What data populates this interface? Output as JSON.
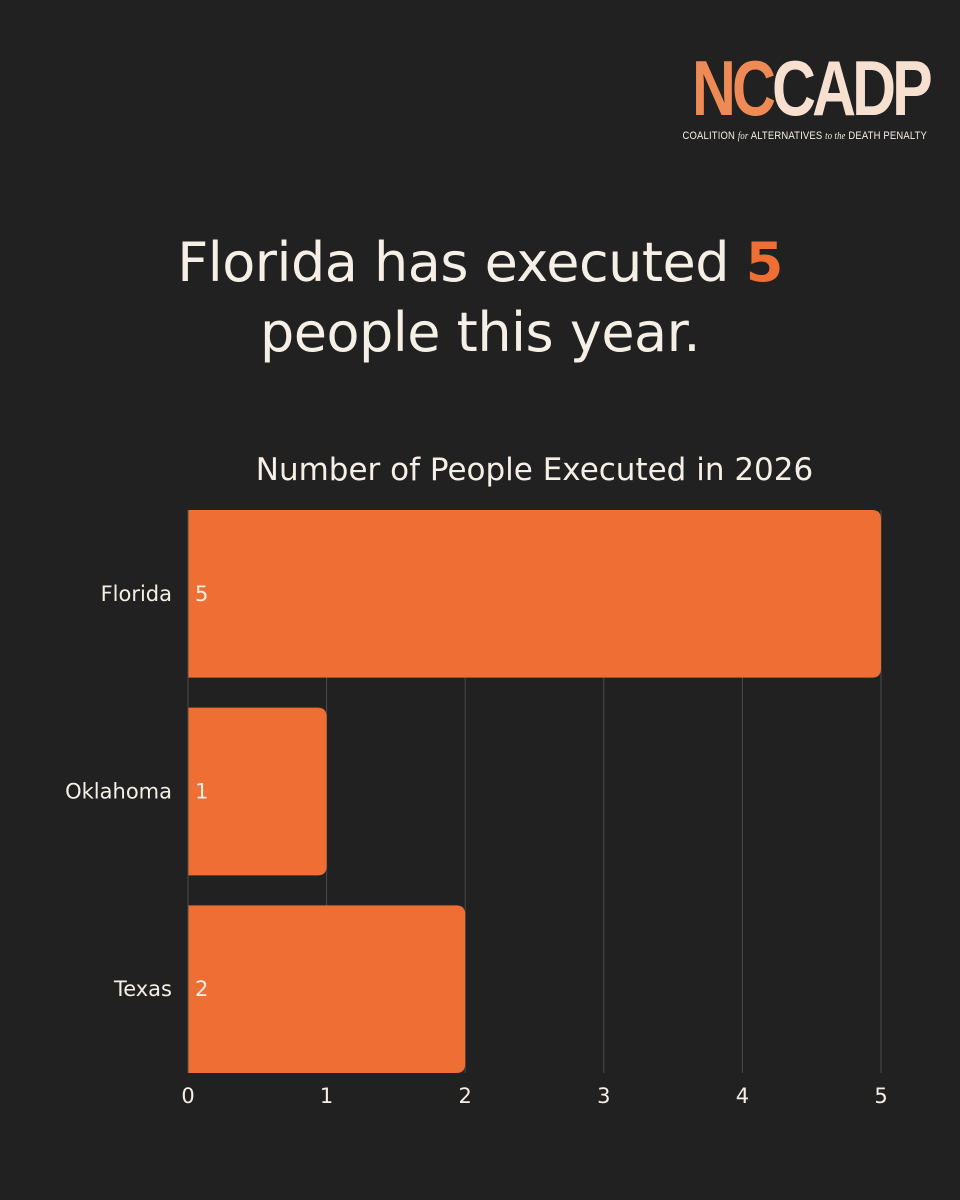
{
  "logo": {
    "part1": "NC",
    "part2": "CADP",
    "tag_before": "COALITION",
    "tag_for": "for",
    "tag_mid": "ALTERNATIVES",
    "tag_to": "to the",
    "tag_after": "DEATH PENALTY"
  },
  "headline": {
    "line1_before": "Florida has executed ",
    "line1_number": "5",
    "line2": "people this year."
  },
  "colors": {
    "background": "#212121",
    "bar": "#ef6e33",
    "text": "#f5efe6",
    "grid": "#4a4a4a"
  },
  "chart_data": {
    "type": "bar",
    "orientation": "horizontal",
    "title": "Number of People Executed in 2026",
    "categories": [
      "Florida",
      "Oklahoma",
      "Texas"
    ],
    "values": [
      5,
      1,
      2
    ],
    "data_labels": [
      "5",
      "1",
      "2"
    ],
    "xlim": [
      0,
      5
    ],
    "xticks": [
      "0",
      "1",
      "2",
      "3",
      "4",
      "5"
    ],
    "grid": true,
    "legend": "none"
  }
}
